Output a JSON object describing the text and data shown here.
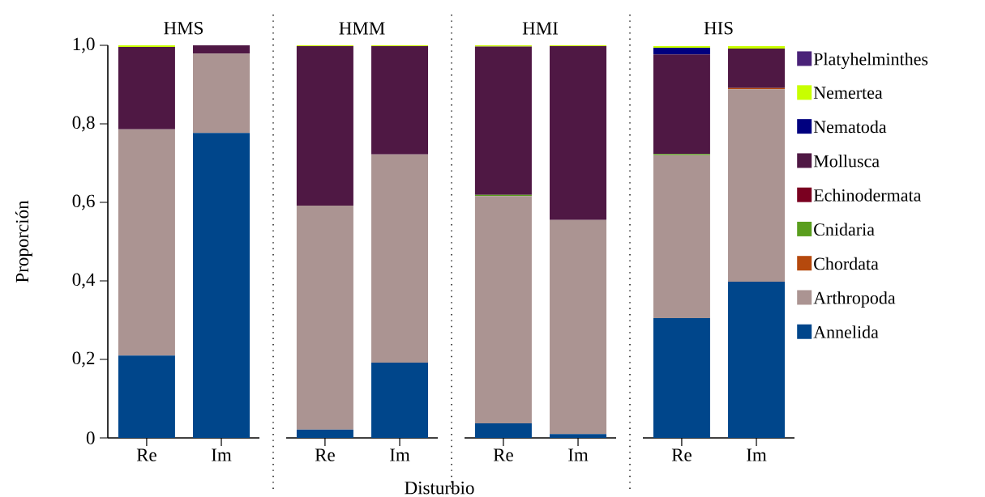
{
  "chart_data": [
    {
      "type": "bar",
      "title": "HMS",
      "ylabel": "Proporción",
      "categories": [
        "Re",
        "Im"
      ],
      "stacked": true,
      "ylim": [
        0,
        1
      ],
      "yticks": [
        0,
        {
          "value": 0.2,
          "label": "0,2"
        },
        {
          "value": 0.4,
          "label": "0,4"
        },
        {
          "value": 0.6,
          "label": "0,6"
        },
        {
          "value": 0.8,
          "label": "0,8"
        },
        {
          "value": 1,
          "label": "1,0"
        }
      ],
      "series": [
        {
          "color": "#00468b",
          "values": [
            0.21,
            0.777
          ]
        },
        {
          "color": "#ab9492",
          "values": [
            0.576,
            0.202
          ]
        },
        {
          "color": "#b5490d",
          "values": [
            0,
            0
          ]
        },
        {
          "color": "#5a9e1e",
          "values": [
            0,
            0
          ]
        },
        {
          "color": "#7a0020",
          "values": [
            0,
            0
          ]
        },
        {
          "color": "#4f1844",
          "values": [
            0.21,
            0.021
          ]
        },
        {
          "color": "#00007f",
          "values": [
            0,
            0
          ]
        },
        {
          "color": "#c8ff00",
          "values": [
            0.004,
            0
          ]
        },
        {
          "color": "#4a2278",
          "values": [
            0,
            0
          ]
        }
      ]
    },
    {
      "type": "bar",
      "title": "HMM",
      "xlabel": "Disturbio",
      "categories": [
        "Re",
        "Im"
      ],
      "stacked": true,
      "ylim": [
        0,
        1
      ],
      "tick_labels": "x",
      "series": [
        {
          "color": "#00468b",
          "values": [
            0.021,
            0.192
          ]
        },
        {
          "color": "#ab9492",
          "values": [
            0.571,
            0.53
          ]
        },
        {
          "color": "#b5490d",
          "values": [
            0,
            0
          ]
        },
        {
          "color": "#5a9e1e",
          "values": [
            0,
            0
          ]
        },
        {
          "color": "#7a0020",
          "values": [
            0,
            0
          ]
        },
        {
          "color": "#4f1844",
          "values": [
            0.406,
            0.276
          ]
        },
        {
          "color": "#00007f",
          "values": [
            0,
            0
          ]
        },
        {
          "color": "#c8ff00",
          "values": [
            0.002,
            0.002
          ]
        },
        {
          "color": "#4a2278",
          "values": [
            0,
            0
          ]
        }
      ]
    },
    {
      "type": "bar",
      "title": "HMI",
      "categories": [
        "Re",
        "Im"
      ],
      "stacked": true,
      "ylim": [
        0,
        1
      ],
      "tick_labels": "x",
      "series": [
        {
          "color": "#00468b",
          "values": [
            0.037,
            0.01
          ]
        },
        {
          "color": "#ab9492",
          "values": [
            0.579,
            0.545
          ]
        },
        {
          "color": "#b5490d",
          "values": [
            0,
            0
          ]
        },
        {
          "color": "#5a9e1e",
          "values": [
            0.003,
            0
          ]
        },
        {
          "color": "#7a0020",
          "values": [
            0,
            0
          ]
        },
        {
          "color": "#4f1844",
          "values": [
            0.378,
            0.443
          ]
        },
        {
          "color": "#00007f",
          "values": [
            0,
            0
          ]
        },
        {
          "color": "#c8ff00",
          "values": [
            0.003,
            0.002
          ]
        },
        {
          "color": "#4a2278",
          "values": [
            0,
            0
          ]
        }
      ]
    },
    {
      "type": "bar",
      "title": "HIS",
      "categories": [
        "Re",
        "Im"
      ],
      "stacked": true,
      "ylim": [
        0,
        1
      ],
      "tick_labels": "x",
      "legend": "right",
      "series": [
        {
          "name": "Annelida",
          "color": "#00468b",
          "values": [
            0.305,
            0.398
          ]
        },
        {
          "name": "Arthropoda",
          "color": "#ab9492",
          "values": [
            0.415,
            0.49
          ]
        },
        {
          "name": "Chordata",
          "color": "#b5490d",
          "values": [
            0,
            0.003
          ]
        },
        {
          "name": "Cnidaria",
          "color": "#5a9e1e",
          "values": [
            0.003,
            0
          ]
        },
        {
          "name": "Echinodermata",
          "color": "#7a0020",
          "values": [
            0,
            0
          ]
        },
        {
          "name": "Mollusca",
          "color": "#4f1844",
          "values": [
            0.254,
            0.101
          ]
        },
        {
          "name": "Nematoda",
          "color": "#00007f",
          "values": [
            0.017,
            0
          ]
        },
        {
          "name": "Nemertea",
          "color": "#c8ff00",
          "values": [
            0.004,
            0.006
          ]
        },
        {
          "name": "Platyhelminthes",
          "color": "#4a2278",
          "values": [
            0,
            0
          ]
        }
      ]
    }
  ]
}
